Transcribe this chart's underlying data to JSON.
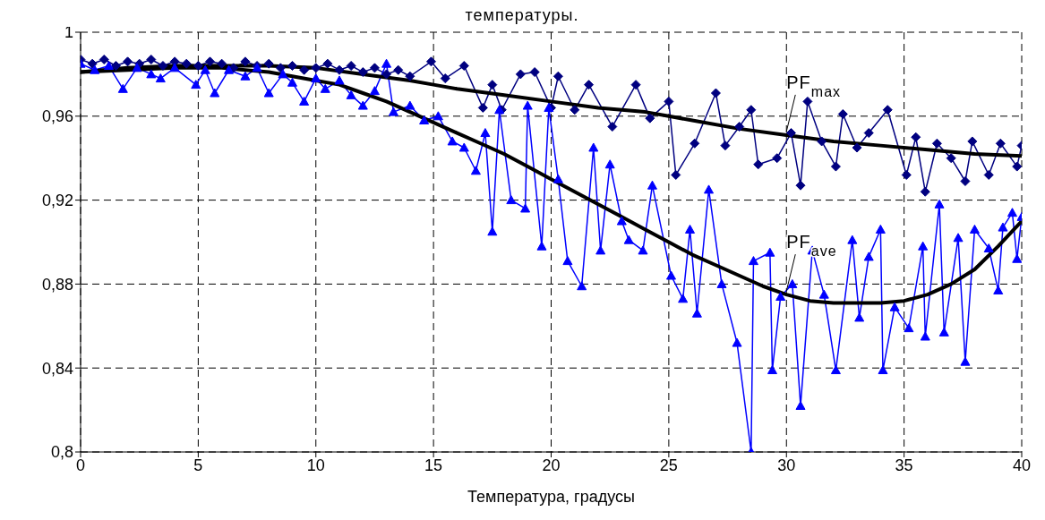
{
  "chart_data": {
    "type": "line",
    "title": "температуры.",
    "xlabel": "Температура, градусы",
    "xlim": [
      0,
      40
    ],
    "xticks": [
      0,
      5,
      10,
      15,
      20,
      25,
      30,
      35,
      40
    ],
    "ylim": [
      0.8,
      1
    ],
    "yticks": [
      {
        "value": 0.8,
        "label": "0,8"
      },
      {
        "value": 0.84,
        "label": "0,84"
      },
      {
        "value": 0.88,
        "label": "0,88"
      },
      {
        "value": 0.92,
        "label": "0,92"
      },
      {
        "value": 0.96,
        "label": "0,96"
      },
      1
    ],
    "grid": true,
    "series": [
      {
        "marker": "diamond",
        "color": "#000080",
        "x": [
          0,
          0.5,
          1,
          1.5,
          2,
          2.5,
          3,
          3.5,
          4,
          4.5,
          5,
          5.5,
          6,
          6.5,
          7,
          7.5,
          8,
          8.5,
          9,
          9.5,
          10,
          10.5,
          11,
          11.5,
          12,
          12.5,
          13,
          13.5,
          14,
          14.9,
          15.5,
          16.3,
          17.1,
          17.5,
          17.9,
          18.7,
          19.3,
          20,
          20.3,
          21,
          21.6,
          22.6,
          23.6,
          24.2,
          25,
          25.3,
          26.1,
          27,
          27.4,
          28,
          28.5,
          28.8,
          29.6,
          30.2,
          30.6,
          30.9,
          31.5,
          32.1,
          32.4,
          33,
          33.5,
          34.3,
          35.1,
          35.5,
          35.9,
          36.4,
          37,
          37.6,
          37.9,
          38.6,
          39.1,
          39.8,
          40
        ],
        "values": [
          0.987,
          0.985,
          0.987,
          0.984,
          0.986,
          0.985,
          0.987,
          0.984,
          0.986,
          0.985,
          0.984,
          0.986,
          0.985,
          0.983,
          0.986,
          0.984,
          0.985,
          0.983,
          0.984,
          0.982,
          0.983,
          0.985,
          0.982,
          0.984,
          0.981,
          0.983,
          0.98,
          0.982,
          0.979,
          0.986,
          0.978,
          0.984,
          0.964,
          0.975,
          0.963,
          0.98,
          0.981,
          0.964,
          0.979,
          0.963,
          0.975,
          0.955,
          0.975,
          0.959,
          0.967,
          0.932,
          0.947,
          0.971,
          0.946,
          0.955,
          0.963,
          0.937,
          0.94,
          0.952,
          0.927,
          0.967,
          0.948,
          0.936,
          0.961,
          0.945,
          0.952,
          0.963,
          0.932,
          0.95,
          0.924,
          0.947,
          0.94,
          0.929,
          0.948,
          0.932,
          0.947,
          0.936,
          0.946
        ]
      },
      {
        "marker": "triangle",
        "color": "#0000ff",
        "x": [
          0,
          0.6,
          1.2,
          1.8,
          2.4,
          3,
          3.4,
          4,
          4.9,
          5.3,
          5.7,
          6.3,
          7,
          7.5,
          8,
          8.6,
          9,
          9.5,
          10,
          10.4,
          11,
          11.5,
          12,
          12.5,
          13,
          13.3,
          14,
          14.6,
          15.2,
          15.8,
          16.3,
          16.8,
          17.2,
          17.5,
          17.8,
          18.3,
          18.9,
          19,
          19.6,
          19.9,
          20.3,
          20.7,
          21.3,
          21.8,
          22.1,
          22.5,
          23,
          23.3,
          23.9,
          24.3,
          25.1,
          25.6,
          25.9,
          26.2,
          26.7,
          27.25,
          27.9,
          28.5,
          28.6,
          29.3,
          29.4,
          29.75,
          30.25,
          30.6,
          31.1,
          31.6,
          32.1,
          32.8,
          33.1,
          33.5,
          34,
          34.1,
          34.6,
          35.2,
          35.8,
          35.9,
          36.5,
          36.7,
          37.3,
          37.6,
          38,
          38.6,
          39,
          39.2,
          39.6,
          39.8,
          40
        ],
        "values": [
          0.985,
          0.982,
          0.984,
          0.973,
          0.983,
          0.98,
          0.978,
          0.983,
          0.975,
          0.982,
          0.971,
          0.982,
          0.979,
          0.983,
          0.971,
          0.98,
          0.976,
          0.967,
          0.978,
          0.973,
          0.977,
          0.97,
          0.965,
          0.972,
          0.985,
          0.962,
          0.965,
          0.958,
          0.96,
          0.948,
          0.945,
          0.934,
          0.952,
          0.905,
          0.963,
          0.92,
          0.916,
          0.965,
          0.898,
          0.964,
          0.93,
          0.891,
          0.879,
          0.945,
          0.896,
          0.937,
          0.91,
          0.901,
          0.896,
          0.927,
          0.884,
          0.873,
          0.906,
          0.866,
          0.925,
          0.88,
          0.852,
          0.8,
          0.891,
          0.895,
          0.839,
          0.874,
          0.88,
          0.822,
          0.896,
          0.875,
          0.839,
          0.901,
          0.864,
          0.893,
          0.906,
          0.839,
          0.869,
          0.859,
          0.898,
          0.855,
          0.918,
          0.857,
          0.902,
          0.843,
          0.906,
          0.897,
          0.877,
          0.907,
          0.914,
          0.892,
          0.912
        ]
      },
      {
        "name": "PF$_{max}$",
        "marker": "none",
        "color": "#000000",
        "x": [
          0,
          2,
          4,
          6,
          8,
          10,
          12,
          14,
          15,
          16,
          18,
          20,
          22,
          24,
          25,
          26,
          28,
          30,
          32,
          34,
          36,
          38,
          40
        ],
        "values": [
          0.981,
          0.983,
          0.984,
          0.984,
          0.984,
          0.983,
          0.98,
          0.977,
          0.975,
          0.973,
          0.97,
          0.967,
          0.964,
          0.962,
          0.96,
          0.958,
          0.954,
          0.951,
          0.948,
          0.946,
          0.944,
          0.942,
          0.941
        ]
      },
      {
        "name": "PF$_{ave}$",
        "marker": "none",
        "color": "#000000",
        "x": [
          0,
          2,
          4,
          6,
          8,
          9,
          10,
          11,
          12,
          13,
          14,
          15,
          16,
          17,
          18,
          19,
          20,
          21,
          22,
          23,
          24,
          25,
          26,
          27,
          28,
          29,
          30,
          31,
          32,
          33,
          34,
          35,
          36,
          37,
          38,
          39,
          40
        ],
        "values": [
          0.981,
          0.982,
          0.983,
          0.983,
          0.981,
          0.979,
          0.977,
          0.975,
          0.971,
          0.967,
          0.962,
          0.957,
          0.952,
          0.947,
          0.942,
          0.936,
          0.93,
          0.924,
          0.918,
          0.912,
          0.906,
          0.9,
          0.894,
          0.889,
          0.884,
          0.879,
          0.875,
          0.872,
          0.871,
          0.871,
          0.871,
          0.872,
          0.875,
          0.88,
          0.887,
          0.898,
          0.91
        ]
      }
    ]
  }
}
